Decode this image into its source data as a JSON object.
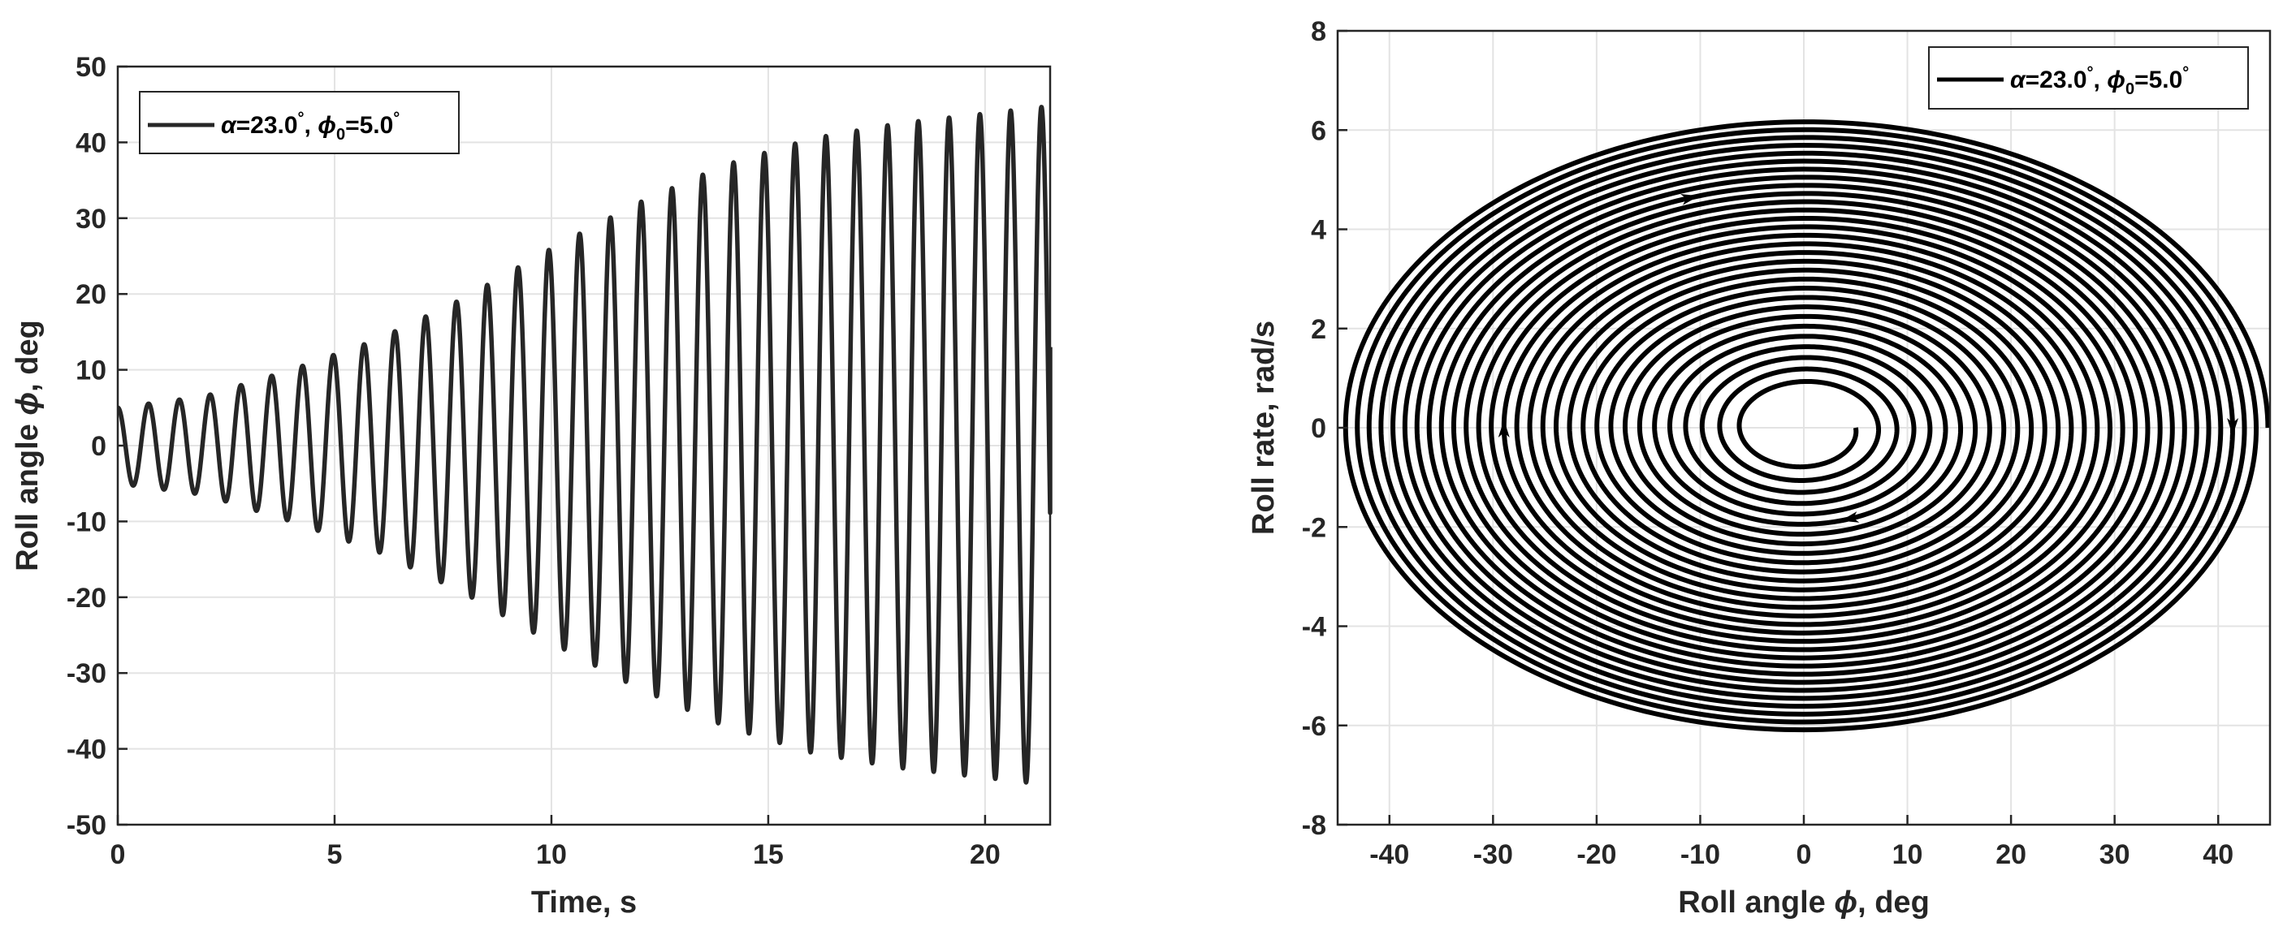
{
  "chart_data": [
    {
      "type": "line",
      "xlabel": "Time, s",
      "ylabel_prefix": "Roll angle ",
      "ylabel_symbol": "ϕ",
      "ylabel_suffix": ", deg",
      "xlim": [
        0,
        21.5
      ],
      "ylim": [
        -50,
        50
      ],
      "xticks": [
        0,
        5,
        10,
        15,
        20
      ],
      "yticks": [
        -50,
        -40,
        -30,
        -20,
        -10,
        0,
        10,
        20,
        30,
        40,
        50
      ],
      "grid": true,
      "legend_position": "top-left",
      "legend": {
        "alpha_text": "α",
        "alpha_value": "=23.0",
        "deg": "°",
        "phi_text": "ϕ",
        "sub": "0",
        "phi_value": "=5.0",
        "deg2": "°"
      },
      "series": [
        {
          "color": "#262626",
          "period_s": 0.71,
          "samples": [
            {
              "t": 0.0,
              "amp": 5.0
            },
            {
              "t": 2.0,
              "amp": 6.5
            },
            {
              "t": 4.0,
              "amp": 10.0
            },
            {
              "t": 6.0,
              "amp": 14.0
            },
            {
              "t": 8.0,
              "amp": 19.5
            },
            {
              "t": 10.0,
              "amp": 26.0
            },
            {
              "t": 12.0,
              "amp": 32.0
            },
            {
              "t": 14.0,
              "amp": 37.0
            },
            {
              "t": 16.0,
              "amp": 40.5
            },
            {
              "t": 18.0,
              "amp": 42.5
            },
            {
              "t": 20.0,
              "amp": 43.8
            },
            {
              "t": 21.5,
              "amp": 44.8
            }
          ],
          "end_value": 13
        }
      ]
    },
    {
      "type": "line",
      "xlabel_prefix": "Roll angle ",
      "xlabel_symbol": "ϕ",
      "xlabel_suffix": ", deg",
      "ylabel": "Roll rate, rad/s",
      "xlim": [
        -45,
        45
      ],
      "ylim": [
        -8,
        8
      ],
      "xticks": [
        -40,
        -30,
        -20,
        -10,
        0,
        10,
        20,
        30,
        40
      ],
      "yticks": [
        -8,
        -6,
        -4,
        -2,
        0,
        2,
        4,
        6,
        8
      ],
      "grid": true,
      "legend_position": "top-right",
      "legend": {
        "alpha_text": "α",
        "alpha_value": "=23.0",
        "deg": "°",
        "phi_text": "ϕ",
        "sub": "0",
        "phi_value": "=5.0",
        "deg2": "°"
      },
      "series": [
        {
          "color": "#000000",
          "phase_portrait": true,
          "start_angle": 5.0,
          "final_angle": 44.8,
          "turns": 30,
          "max_rate": 6.2,
          "rate_per_deg": 0.1385
        }
      ]
    }
  ]
}
